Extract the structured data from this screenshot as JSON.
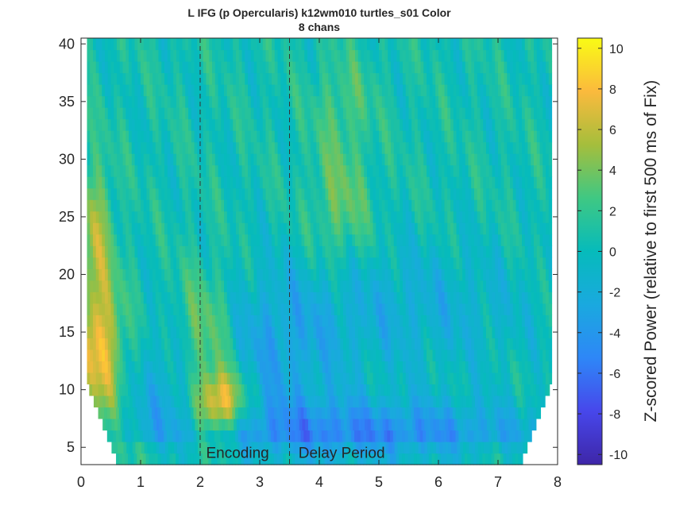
{
  "chart_data": {
    "type": "heatmap",
    "title": "L IFG (p Opercularis) k12wm010 turtles_s01 Color",
    "subtitle": "8 chans",
    "xlabel": "",
    "ylabel": "",
    "xlim": [
      0,
      8
    ],
    "ylim": [
      3.5,
      40.5
    ],
    "x_ticks": [
      0,
      1,
      2,
      3,
      4,
      5,
      6,
      7,
      8
    ],
    "y_ticks": [
      5,
      10,
      15,
      20,
      25,
      30,
      35,
      40
    ],
    "x_range_of_data": [
      0.1,
      7.9
    ],
    "y_range_of_data": [
      4,
      40
    ],
    "colormap": "parula",
    "color_range": [
      -10.5,
      10.5
    ],
    "colorbar": {
      "label": "Z-scored Power (relative to first 500 ms of Fix)",
      "ticks": [
        10,
        8,
        6,
        4,
        2,
        0,
        -2,
        -4,
        -6,
        -8,
        -10
      ]
    },
    "event_lines": [
      2.0,
      3.5
    ],
    "annotations": [
      {
        "text": "Encoding",
        "x": 2.1,
        "y": 4.5
      },
      {
        "text": "Delay Period",
        "x": 3.65,
        "y": 4.5
      }
    ],
    "features": [
      {
        "region": "early low-frequency onset",
        "t": [
          0.1,
          0.6
        ],
        "f": [
          8,
          18
        ],
        "z": 7
      },
      {
        "region": "encoding peak",
        "t": [
          2.0,
          2.8
        ],
        "f": [
          7,
          11
        ],
        "z": 8.5
      },
      {
        "region": "delay low-frequency suppression",
        "t": [
          3.5,
          7.5
        ],
        "f": [
          4,
          8
        ],
        "z": -5.5
      },
      {
        "region": "delay broadband increase",
        "t": [
          4.0,
          4.8
        ],
        "f": [
          22,
          30
        ],
        "z": 3.5
      }
    ],
    "grid": false
  }
}
